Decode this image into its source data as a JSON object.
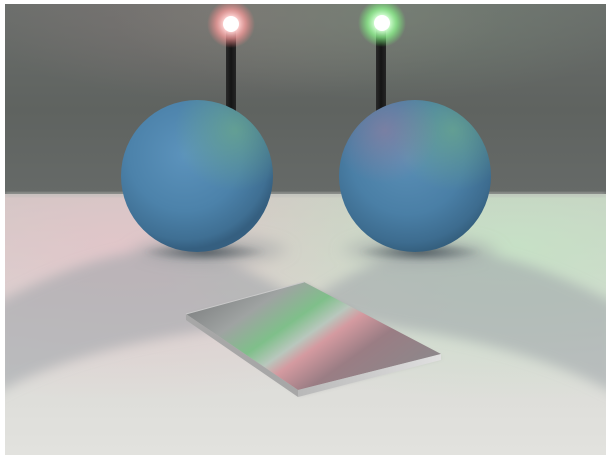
{
  "scene": {
    "background_color": "#ffffff",
    "wall_color": "#5e6260",
    "floor_color": "#d8d8d4",
    "light_left_color": "#ff9a9a",
    "light_right_color": "#8cff8c",
    "sphere_color": "#4f86ad",
    "plate_color": "#9a9a9a",
    "objects": [
      "pink-light",
      "green-light",
      "left-sphere",
      "right-sphere",
      "metal-plate"
    ]
  }
}
